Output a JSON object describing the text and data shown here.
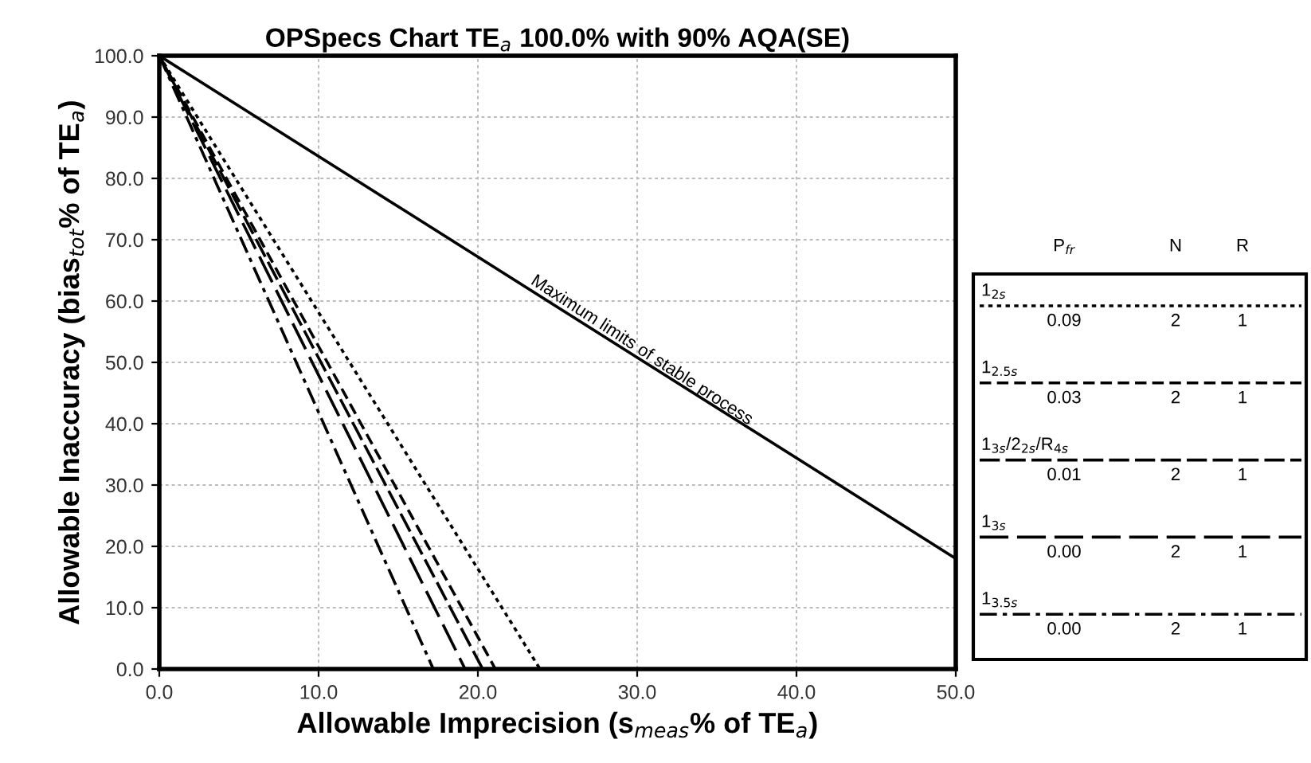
{
  "chart_data": {
    "type": "line",
    "title": "OPSpecs Chart TE$_{a}$ 100.0% with 90% AQA(SE)",
    "xlabel": "Allowable Imprecision (s$_{meas}$% of TE$_{a}$)",
    "ylabel": "Allowable Inaccuracy (bias$_{tot}$% of TE$_{a}$)",
    "xlim": [
      0,
      50
    ],
    "ylim": [
      0,
      100
    ],
    "xticks": [
      {
        "value": 0,
        "label": "0.0"
      },
      {
        "value": 10,
        "label": "10.0"
      },
      {
        "value": 20,
        "label": "20.0"
      },
      {
        "value": 30,
        "label": "30.0"
      },
      {
        "value": 40,
        "label": "40.0"
      },
      {
        "value": 50,
        "label": "50.0"
      }
    ],
    "yticks": [
      {
        "value": 0,
        "label": "0.0"
      },
      {
        "value": 10,
        "label": "10.0"
      },
      {
        "value": 20,
        "label": "20.0"
      },
      {
        "value": 30,
        "label": "30.0"
      },
      {
        "value": 40,
        "label": "40.0"
      },
      {
        "value": 50,
        "label": "50.0"
      },
      {
        "value": 60,
        "label": "60.0"
      },
      {
        "value": 70,
        "label": "70.0"
      },
      {
        "value": 80,
        "label": "80.0"
      },
      {
        "value": 90,
        "label": "90.0"
      },
      {
        "value": 100,
        "label": "100.0"
      }
    ],
    "grid": true,
    "legend": "right",
    "marker": "none",
    "series": [
      {
        "x": [
          0,
          50
        ],
        "values": [
          100,
          18
        ],
        "color": "#000000",
        "line_style": "solid"
      },
      {
        "name": "1$_{2s}$",
        "x": [
          0,
          23.9
        ],
        "values": [
          100,
          0
        ],
        "color": "#000000",
        "line_style": "dotted"
      },
      {
        "name": "1$_{2.5s}$",
        "x": [
          0,
          21.1
        ],
        "values": [
          100,
          0
        ],
        "color": "#000000",
        "line_style": "dashed"
      },
      {
        "name": "1$_{3s}$/2$_{2s}$/R$_{4s}$",
        "x": [
          0,
          20.3
        ],
        "values": [
          100,
          0
        ],
        "color": "#000000",
        "line_style": "longdash"
      },
      {
        "name": "1$_{3s}$",
        "x": [
          0,
          19.2
        ],
        "values": [
          100,
          0
        ],
        "color": "#000000",
        "line_style": "longerdash"
      },
      {
        "name": "1$_{3.5s}$",
        "x": [
          0,
          17.2
        ],
        "values": [
          100,
          0
        ],
        "color": "#000000",
        "line_style": "dashdot"
      }
    ],
    "annotations": [
      {
        "text": "Maximum limits of stable process",
        "x": 30,
        "y": 50.8
      },
      "P$_{fr}$",
      "N",
      "R",
      "0.09",
      "2",
      "1",
      "0.03",
      "2",
      "1",
      "0.01",
      "2",
      "1",
      "0.00",
      "2",
      "1",
      "0.00",
      "2",
      "1"
    ]
  }
}
